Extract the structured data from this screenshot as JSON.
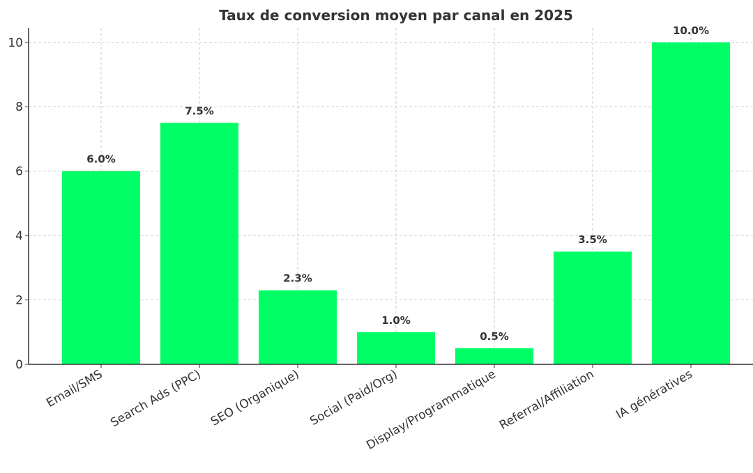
{
  "chart_data": {
    "type": "bar",
    "title": "Taux de conversion moyen par canal en 2025",
    "xlabel": "",
    "ylabel": "",
    "categories": [
      "Email/SMS",
      "Search Ads (PPC)",
      "SEO (Organique)",
      "Social (Paid/Org)",
      "Display/Programmatique",
      "Referral/Affiliation",
      "IA génératives"
    ],
    "values": [
      6.0,
      7.5,
      2.3,
      1.0,
      0.5,
      3.5,
      10.0
    ],
    "data_labels": [
      "6.0%",
      "7.5%",
      "2.3%",
      "1.0%",
      "0.5%",
      "3.5%",
      "10.0%"
    ],
    "yticks": [
      0,
      2,
      4,
      6,
      8,
      10
    ],
    "ylim": [
      0,
      10.45
    ],
    "grid": true,
    "bar_color": "#00ff66"
  }
}
